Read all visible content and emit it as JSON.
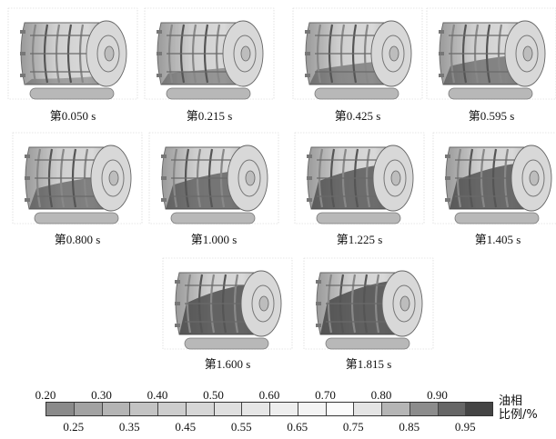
{
  "panels": [
    {
      "label": "第0.050 s",
      "oil_level": 0.15
    },
    {
      "label": "第0.215 s",
      "oil_level": 0.3
    },
    {
      "label": "第0.425 s",
      "oil_level": 0.4
    },
    {
      "label": "第0.595 s",
      "oil_level": 0.5
    },
    {
      "label": "第0.800 s",
      "oil_level": 0.55
    },
    {
      "label": "第1.000 s",
      "oil_level": 0.65
    },
    {
      "label": "第1.225 s",
      "oil_level": 0.75
    },
    {
      "label": "第1.405 s",
      "oil_level": 0.78
    },
    {
      "label": "第1.600 s",
      "oil_level": 0.85
    },
    {
      "label": "第1.815 s",
      "oil_level": 0.9
    }
  ],
  "colorbar": {
    "title_line1": "油相",
    "title_line2": "比例/%",
    "top_labels": [
      "0.20",
      "0.30",
      "0.40",
      "0.50",
      "0.60",
      "0.70",
      "0.80",
      "0.90"
    ],
    "bottom_labels": [
      "0.25",
      "0.35",
      "0.45",
      "0.55",
      "0.65",
      "0.75",
      "0.85",
      "0.95"
    ],
    "colors": [
      "#8a8a8a",
      "#a2a2a2",
      "#b4b4b4",
      "#c3c3c3",
      "#cdcdcd",
      "#d6d6d6",
      "#dfdfdf",
      "#e6e6e6",
      "#eeeeee",
      "#f4f4f4",
      "#fbfbfb",
      "#e4e4e4",
      "#b5b5b5",
      "#8c8c8c",
      "#666666",
      "#444444"
    ]
  }
}
